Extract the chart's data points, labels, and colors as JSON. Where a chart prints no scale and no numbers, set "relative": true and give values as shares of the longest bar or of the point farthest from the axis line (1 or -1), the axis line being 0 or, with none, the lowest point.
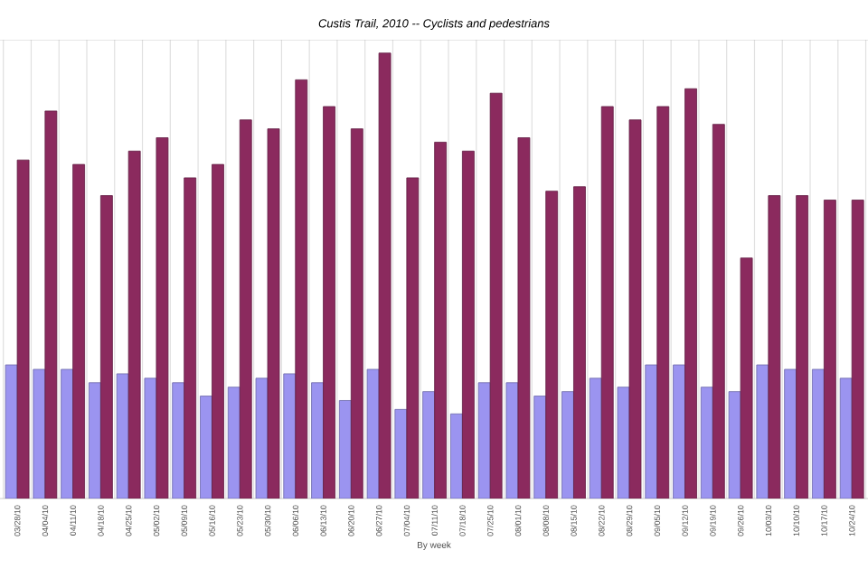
{
  "chart_data": {
    "type": "bar",
    "title": "Custis Trail, 2010 -- Cyclists and pedestrians",
    "xlabel": "By week",
    "relative": true,
    "grid": "x",
    "categories": [
      "03/28/10",
      "04/04/10",
      "04/11/10",
      "04/18/10",
      "04/25/10",
      "05/02/10",
      "05/09/10",
      "05/16/10",
      "05/23/10",
      "05/30/10",
      "06/06/10",
      "06/13/10",
      "06/20/10",
      "06/27/10",
      "07/04/10",
      "07/11/10",
      "07/18/10",
      "07/25/10",
      "08/01/10",
      "08/08/10",
      "08/15/10",
      "08/22/10",
      "08/29/10",
      "09/05/10",
      "09/12/10",
      "09/19/10",
      "09/26/10",
      "10/03/10",
      "10/10/10",
      "10/17/10",
      "10/24/10"
    ],
    "series": [
      {
        "color": "#9b94f0",
        "values": [
          0.3,
          0.29,
          0.29,
          0.26,
          0.28,
          0.27,
          0.26,
          0.23,
          0.25,
          0.27,
          0.28,
          0.26,
          0.22,
          0.29,
          0.2,
          0.24,
          0.19,
          0.26,
          0.26,
          0.23,
          0.24,
          0.27,
          0.25,
          0.3,
          0.3,
          0.25,
          0.24,
          0.3,
          0.29,
          0.29,
          0.27
        ]
      },
      {
        "color": "#8b2a5e",
        "values": [
          0.76,
          0.87,
          0.75,
          0.68,
          0.78,
          0.81,
          0.72,
          0.75,
          0.85,
          0.83,
          0.94,
          0.88,
          0.83,
          1.0,
          0.72,
          0.8,
          0.78,
          0.91,
          0.81,
          0.69,
          0.7,
          0.88,
          0.85,
          0.88,
          0.92,
          0.84,
          0.54,
          0.68,
          0.68,
          0.67,
          0.67
        ]
      }
    ]
  }
}
